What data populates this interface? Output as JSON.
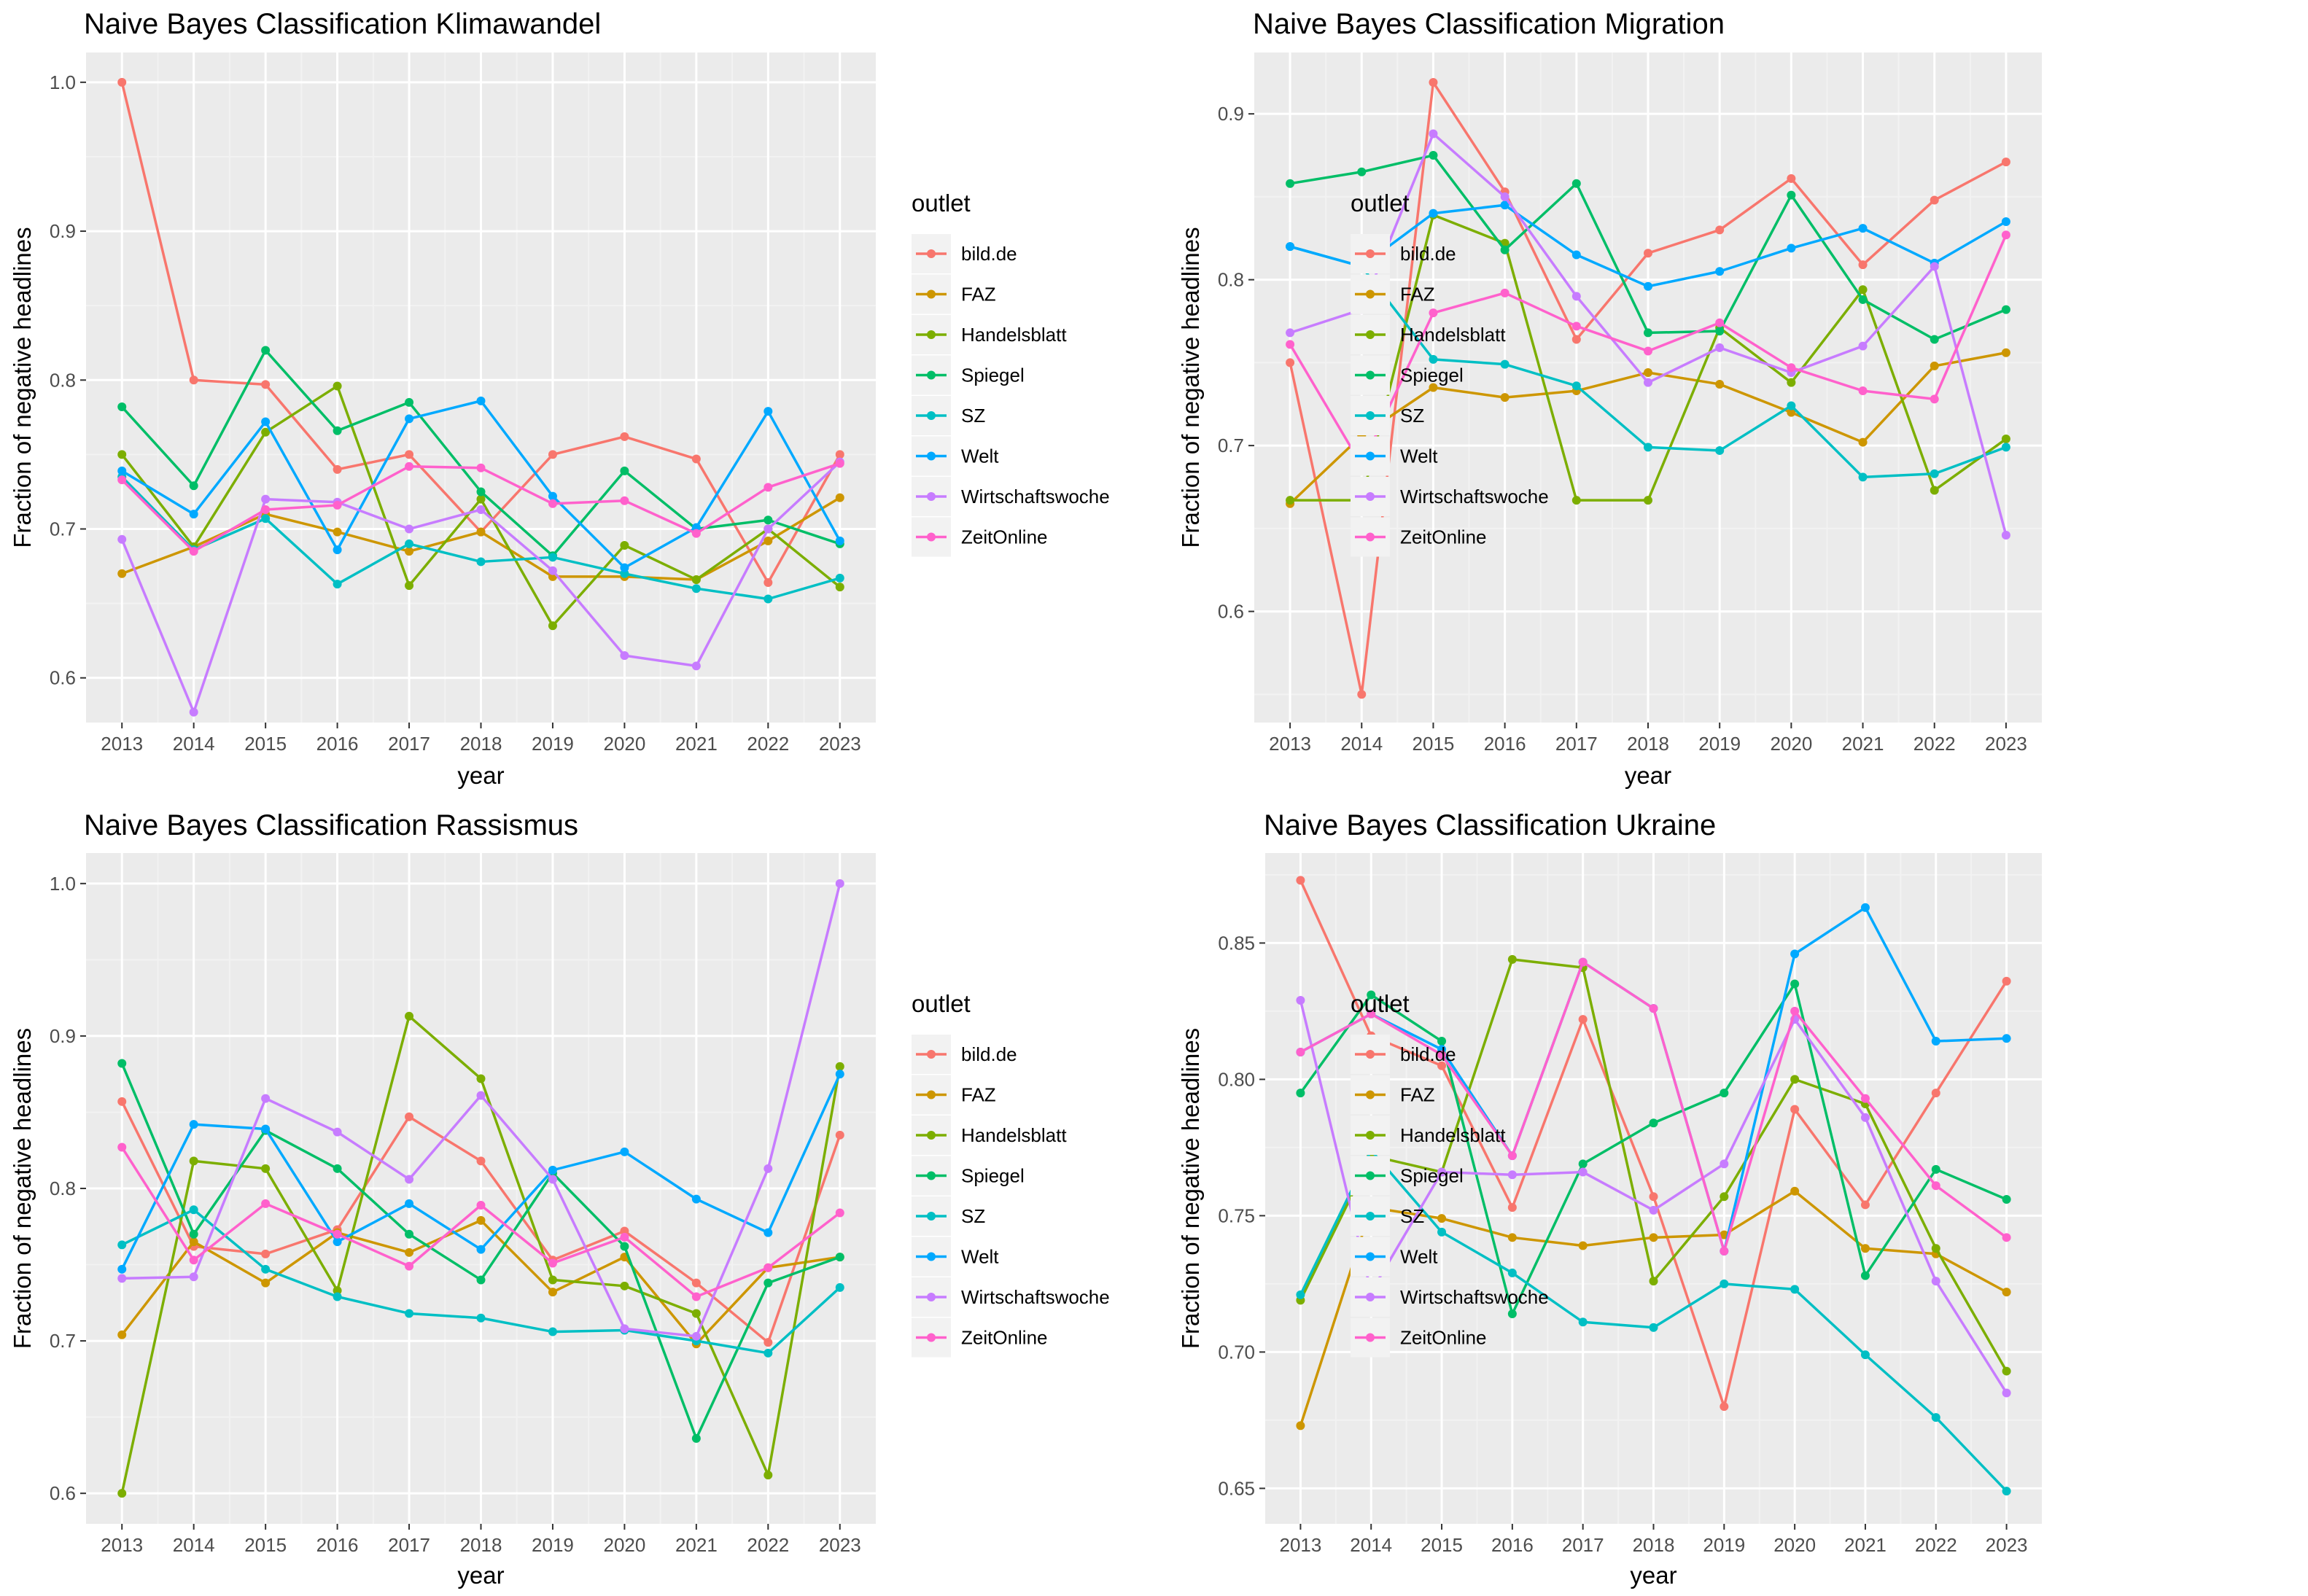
{
  "colors": {
    "panel_background": "#ebebeb",
    "grid_major": "#ffffff",
    "grid_minor": "#f2f2f2",
    "tick_text": "#4d4d4d"
  },
  "outlets": [
    {
      "name": "bild.de",
      "color": "#F8766D"
    },
    {
      "name": "FAZ",
      "color": "#CD9600"
    },
    {
      "name": "Handelsblatt",
      "color": "#7CAE00"
    },
    {
      "name": "Spiegel",
      "color": "#00BE67"
    },
    {
      "name": "SZ",
      "color": "#00BFC4"
    },
    {
      "name": "Welt",
      "color": "#00A9FF"
    },
    {
      "name": "Wirtschaftswoche",
      "color": "#C77CFF"
    },
    {
      "name": "ZeitOnline",
      "color": "#FF61CC"
    }
  ],
  "chart_data": [
    {
      "type": "line",
      "title": "Naive Bayes Classification Klimawandel",
      "xlabel": "year",
      "ylabel": "Fraction of negative headlines",
      "legend_title": "outlet",
      "legend_position": "right",
      "grid": true,
      "x": [
        2013,
        2014,
        2015,
        2016,
        2017,
        2018,
        2019,
        2020,
        2021,
        2022,
        2023
      ],
      "xlim": [
        2012.5,
        2023.5
      ],
      "ylim": [
        0.57,
        1.02
      ],
      "yticks": [
        0.6,
        0.7,
        0.8,
        0.9,
        1.0
      ],
      "ytick_labels": [
        "0.6",
        "0.7",
        "0.8",
        "0.9",
        "1.0"
      ],
      "series": [
        {
          "name": "bild.de",
          "values": [
            1.0,
            0.8,
            0.797,
            0.74,
            0.75,
            0.698,
            0.75,
            0.762,
            0.747,
            0.664,
            0.75
          ]
        },
        {
          "name": "FAZ",
          "values": [
            0.67,
            0.688,
            0.71,
            0.698,
            0.685,
            0.698,
            0.668,
            0.668,
            0.666,
            0.692,
            0.721
          ]
        },
        {
          "name": "Handelsblatt",
          "values": [
            0.75,
            0.688,
            0.765,
            0.796,
            0.662,
            0.72,
            0.635,
            0.689,
            0.666,
            0.7,
            0.661
          ]
        },
        {
          "name": "Spiegel",
          "values": [
            0.782,
            0.729,
            0.82,
            0.766,
            0.785,
            0.725,
            0.682,
            0.739,
            0.7,
            0.706,
            0.69
          ]
        },
        {
          "name": "SZ",
          "values": [
            0.735,
            0.686,
            0.707,
            0.663,
            0.69,
            0.678,
            0.681,
            0.67,
            0.66,
            0.653,
            0.667
          ]
        },
        {
          "name": "Welt",
          "values": [
            0.739,
            0.71,
            0.772,
            0.686,
            0.774,
            0.786,
            0.722,
            0.674,
            0.701,
            0.779,
            0.692
          ]
        },
        {
          "name": "Wirtschaftswoche",
          "values": [
            0.693,
            0.577,
            0.72,
            0.718,
            0.7,
            0.713,
            0.672,
            0.615,
            0.608,
            0.7,
            0.745
          ]
        },
        {
          "name": "ZeitOnline",
          "values": [
            0.733,
            0.685,
            0.713,
            0.716,
            0.742,
            0.741,
            0.717,
            0.719,
            0.697,
            0.728,
            0.744
          ]
        }
      ]
    },
    {
      "type": "line",
      "title": "Naive Bayes Classification Migration",
      "xlabel": "year",
      "ylabel": "Fraction of negative headlines",
      "legend_title": "outlet",
      "legend_position": "right",
      "grid": true,
      "x": [
        2013,
        2014,
        2015,
        2016,
        2017,
        2018,
        2019,
        2020,
        2021,
        2022,
        2023
      ],
      "xlim": [
        2012.5,
        2023.5
      ],
      "ylim": [
        0.533,
        0.937
      ],
      "yticks": [
        0.6,
        0.7,
        0.8,
        0.9
      ],
      "ytick_labels": [
        "0.6",
        "0.7",
        "0.8",
        "0.9"
      ],
      "series": [
        {
          "name": "bild.de",
          "values": [
            0.75,
            0.55,
            0.919,
            0.853,
            0.764,
            0.816,
            0.83,
            0.861,
            0.809,
            0.848,
            0.871
          ]
        },
        {
          "name": "FAZ",
          "values": [
            0.665,
            0.706,
            0.735,
            0.729,
            0.733,
            0.744,
            0.737,
            0.72,
            0.702,
            0.748,
            0.756
          ]
        },
        {
          "name": "Handelsblatt",
          "values": [
            0.667,
            0.667,
            0.839,
            0.822,
            0.667,
            0.667,
            0.771,
            0.738,
            0.794,
            0.673,
            0.704
          ]
        },
        {
          "name": "Spiegel",
          "values": [
            0.858,
            0.865,
            0.875,
            0.818,
            0.858,
            0.768,
            0.769,
            0.851,
            0.788,
            0.764,
            0.782
          ]
        },
        {
          "name": "SZ",
          "values": [
            0.82,
            0.808,
            0.752,
            0.749,
            0.736,
            0.699,
            0.697,
            0.724,
            0.681,
            0.683,
            0.699
          ]
        },
        {
          "name": "Welt",
          "values": [
            0.82,
            0.808,
            0.84,
            0.845,
            0.815,
            0.796,
            0.805,
            0.819,
            0.831,
            0.81,
            0.835
          ]
        },
        {
          "name": "Wirtschaftswoche",
          "values": [
            0.768,
            0.782,
            0.888,
            0.85,
            0.79,
            0.738,
            0.759,
            0.744,
            0.76,
            0.808,
            0.646
          ]
        },
        {
          "name": "ZeitOnline",
          "values": [
            0.761,
            0.688,
            0.78,
            0.792,
            0.772,
            0.757,
            0.774,
            0.747,
            0.733,
            0.728,
            0.827
          ]
        }
      ]
    },
    {
      "type": "line",
      "title": "Naive Bayes Classification Rassismus",
      "xlabel": "year",
      "ylabel": "Fraction of negative headlines",
      "legend_title": "outlet",
      "legend_position": "right",
      "grid": true,
      "x": [
        2013,
        2014,
        2015,
        2016,
        2017,
        2018,
        2019,
        2020,
        2021,
        2022,
        2023
      ],
      "xlim": [
        2012.5,
        2023.5
      ],
      "ylim": [
        0.58,
        1.02
      ],
      "yticks": [
        0.6,
        0.7,
        0.8,
        0.9,
        1.0
      ],
      "ytick_labels": [
        "0.6",
        "0.7",
        "0.8",
        "0.9",
        "1.0"
      ],
      "series": [
        {
          "name": "bild.de",
          "values": [
            0.857,
            0.762,
            0.757,
            0.773,
            0.847,
            0.818,
            0.753,
            0.772,
            0.738,
            0.699,
            0.835
          ]
        },
        {
          "name": "FAZ",
          "values": [
            0.704,
            0.765,
            0.738,
            0.771,
            0.758,
            0.779,
            0.732,
            0.755,
            0.698,
            0.748,
            0.755
          ]
        },
        {
          "name": "Handelsblatt",
          "values": [
            0.6,
            0.818,
            0.813,
            0.733,
            0.913,
            0.872,
            0.74,
            0.736,
            0.718,
            0.612,
            0.88
          ]
        },
        {
          "name": "Spiegel",
          "values": [
            0.882,
            0.77,
            0.838,
            0.813,
            0.77,
            0.74,
            0.81,
            0.762,
            0.636,
            0.738,
            0.755
          ]
        },
        {
          "name": "SZ",
          "values": [
            0.763,
            0.786,
            0.747,
            0.729,
            0.718,
            0.715,
            0.706,
            0.707,
            0.7,
            0.692,
            0.735
          ]
        },
        {
          "name": "Welt",
          "values": [
            0.747,
            0.842,
            0.839,
            0.765,
            0.79,
            0.76,
            0.812,
            0.824,
            0.793,
            0.771,
            0.875
          ]
        },
        {
          "name": "Wirtschaftswoche",
          "values": [
            0.741,
            0.742,
            0.859,
            0.837,
            0.806,
            0.861,
            0.806,
            0.708,
            0.703,
            0.813,
            1.0
          ]
        },
        {
          "name": "ZeitOnline",
          "values": [
            0.827,
            0.753,
            0.79,
            0.77,
            0.749,
            0.789,
            0.751,
            0.768,
            0.729,
            0.748,
            0.784
          ]
        }
      ]
    },
    {
      "type": "line",
      "title": "Naive Bayes Classification Ukraine",
      "xlabel": "year",
      "ylabel": "Fraction of negative headlines",
      "legend_title": "outlet",
      "legend_position": "right",
      "grid": true,
      "x": [
        2013,
        2014,
        2015,
        2016,
        2017,
        2018,
        2019,
        2020,
        2021,
        2022,
        2023
      ],
      "xlim": [
        2012.5,
        2023.5
      ],
      "ylim": [
        0.637,
        0.883
      ],
      "yticks": [
        0.65,
        0.7,
        0.75,
        0.8,
        0.85
      ],
      "ytick_labels": [
        "0.65",
        "0.70",
        "0.75",
        "0.80",
        "0.85"
      ],
      "series": [
        {
          "name": "bild.de",
          "values": [
            0.873,
            0.816,
            0.805,
            0.753,
            0.822,
            0.757,
            0.68,
            0.789,
            0.754,
            0.795,
            0.836
          ]
        },
        {
          "name": "FAZ",
          "values": [
            0.673,
            0.753,
            0.749,
            0.742,
            0.739,
            0.742,
            0.743,
            0.759,
            0.738,
            0.736,
            0.722
          ]
        },
        {
          "name": "Handelsblatt",
          "values": [
            0.719,
            0.772,
            0.766,
            0.844,
            0.841,
            0.726,
            0.757,
            0.8,
            0.791,
            0.738,
            0.693
          ]
        },
        {
          "name": "Spiegel",
          "values": [
            0.795,
            0.831,
            0.814,
            0.714,
            0.769,
            0.784,
            0.795,
            0.835,
            0.728,
            0.767,
            0.756
          ]
        },
        {
          "name": "SZ",
          "values": [
            0.721,
            0.774,
            0.744,
            0.729,
            0.711,
            0.709,
            0.725,
            0.723,
            0.699,
            0.676,
            0.649
          ]
        },
        {
          "name": "Welt",
          "values": [
            0.81,
            0.824,
            0.811,
            0.772,
            0.843,
            0.826,
            0.737,
            0.846,
            0.863,
            0.814,
            0.815
          ]
        },
        {
          "name": "Wirtschaftswoche",
          "values": [
            0.829,
            0.722,
            0.766,
            0.765,
            0.766,
            0.752,
            0.769,
            0.822,
            0.786,
            0.726,
            0.685
          ]
        },
        {
          "name": "ZeitOnline",
          "values": [
            0.81,
            0.824,
            0.809,
            0.772,
            0.843,
            0.826,
            0.737,
            0.825,
            0.793,
            0.761,
            0.742
          ]
        }
      ]
    }
  ]
}
